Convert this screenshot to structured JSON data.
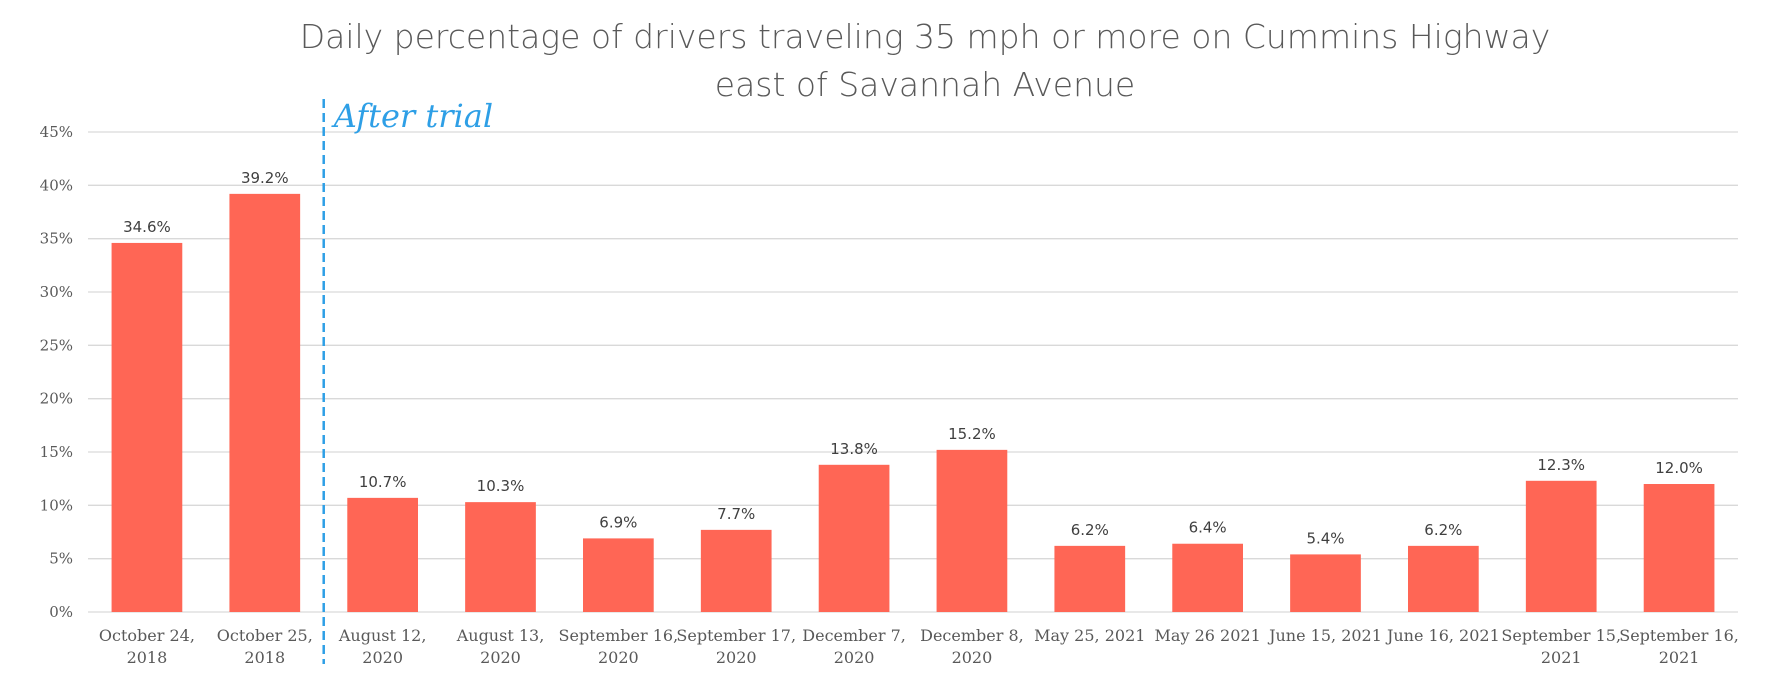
{
  "chart_data": {
    "type": "bar",
    "title": [
      "Daily percentage of drivers traveling 35 mph or more on Cummins Highway",
      "east of Savannah Avenue"
    ],
    "xlabel": "",
    "ylabel": "",
    "ylim": [
      0,
      45
    ],
    "yticks": [
      0,
      5,
      10,
      15,
      20,
      25,
      30,
      35,
      40,
      45
    ],
    "ytick_labels": [
      "0%",
      "5%",
      "10%",
      "15%",
      "20%",
      "25%",
      "30%",
      "35%",
      "40%",
      "45%"
    ],
    "grid": true,
    "legend": "none",
    "categories": [
      [
        "October 24,",
        "2018"
      ],
      [
        "October 25,",
        "2018"
      ],
      [
        "August 12,",
        "2020"
      ],
      [
        "August 13,",
        "2020"
      ],
      [
        "September 16,",
        "2020"
      ],
      [
        "September 17,",
        "2020"
      ],
      [
        "December 7,",
        "2020"
      ],
      [
        "December 8,",
        "2020"
      ],
      [
        "May 25, 2021"
      ],
      [
        "May 26 2021"
      ],
      [
        "June 15, 2021"
      ],
      [
        "June 16, 2021"
      ],
      [
        "September 15,",
        "2021"
      ],
      [
        "September 16,",
        "2021"
      ]
    ],
    "values": [
      34.6,
      39.2,
      10.7,
      10.3,
      6.9,
      7.7,
      13.8,
      15.2,
      6.2,
      6.4,
      5.4,
      6.2,
      12.3,
      12.0
    ],
    "data_labels": [
      "34.6%",
      "39.2%",
      "10.7%",
      "10.3%",
      "6.9%",
      "7.7%",
      "13.8%",
      "15.2%",
      "6.2%",
      "6.4%",
      "5.4%",
      "6.2%",
      "12.3%",
      "12.0%"
    ],
    "annotations": [
      {
        "type": "vertical-dashed-line",
        "between_categories": [
          1,
          2
        ],
        "label": "After trial"
      }
    ],
    "colors": {
      "bar": "#FF6655",
      "annotation": "#2E9FE6",
      "grid": "#D9D9D9",
      "text": "#595959"
    }
  }
}
